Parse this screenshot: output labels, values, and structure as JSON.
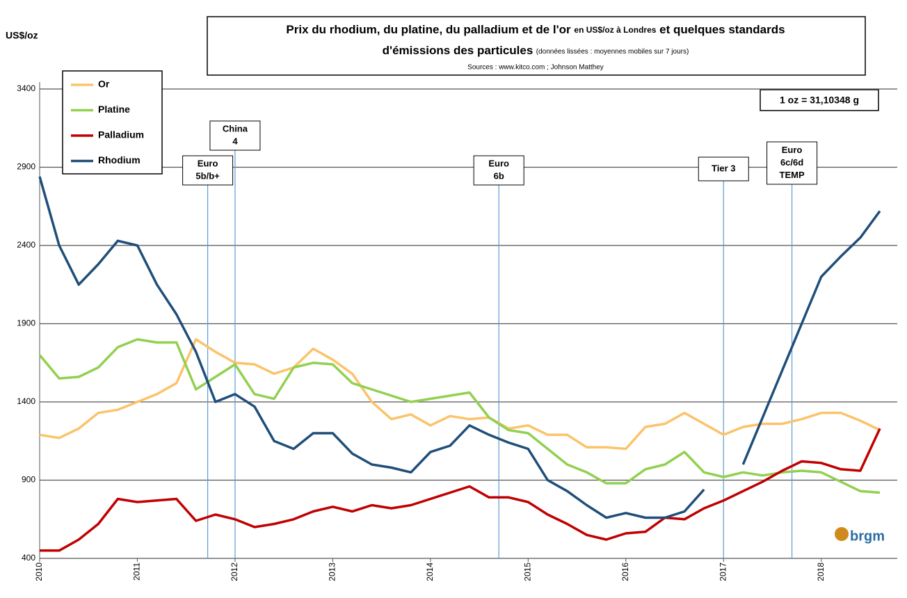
{
  "chart_data": {
    "type": "line",
    "title_parts": [
      "Prix du rhodium, du platine, du palladium et de l'or",
      "en US$/oz à Londres",
      "et quelques standards",
      "d'émissions des particules"
    ],
    "subtitle": "(données lissées : moyennes mobiles sur 7 jours)",
    "source": "Sources : www.kitco.com ; Johnson Matthey",
    "y_label": "US$/oz",
    "note": "1 oz = 31,10348 g",
    "logo_text": "brgm",
    "xlim": [
      2010,
      2018.6
    ],
    "xticks": [
      2010,
      2011,
      2012,
      2013,
      2014,
      2015,
      2016,
      2017,
      2018
    ],
    "ylim": [
      400,
      3400
    ],
    "yticks": [
      400,
      900,
      1400,
      1900,
      2400,
      2900,
      3400
    ],
    "grid": true,
    "legend_position": "upper-left",
    "x": [
      2010.0,
      2010.2,
      2010.4,
      2010.6,
      2010.8,
      2011.0,
      2011.2,
      2011.4,
      2011.6,
      2011.8,
      2012.0,
      2012.2,
      2012.4,
      2012.6,
      2012.8,
      2013.0,
      2013.2,
      2013.4,
      2013.6,
      2013.8,
      2014.0,
      2014.2,
      2014.4,
      2014.6,
      2014.8,
      2015.0,
      2015.2,
      2015.4,
      2015.6,
      2015.8,
      2016.0,
      2016.2,
      2016.4,
      2016.6,
      2016.8,
      2017.0,
      2017.2,
      2017.4,
      2017.6,
      2017.8,
      2018.0,
      2018.2,
      2018.4,
      2018.6
    ],
    "series": [
      {
        "name": "Or",
        "color": "#fbc36a",
        "values": [
          1190,
          1170,
          1230,
          1330,
          1350,
          1400,
          1450,
          1520,
          1800,
          1720,
          1650,
          1640,
          1580,
          1620,
          1740,
          1670,
          1580,
          1400,
          1290,
          1320,
          1250,
          1310,
          1290,
          1300,
          1230,
          1250,
          1190,
          1190,
          1110,
          1110,
          1100,
          1240,
          1260,
          1330,
          1260,
          1190,
          1240,
          1260,
          1260,
          1290,
          1330,
          1330,
          1280,
          1220
        ]
      },
      {
        "name": "Platine",
        "color": "#92d050",
        "values": [
          1700,
          1550,
          1560,
          1620,
          1750,
          1800,
          1780,
          1780,
          1480,
          1560,
          1640,
          1450,
          1420,
          1620,
          1650,
          1640,
          1520,
          1480,
          1440,
          1400,
          1420,
          1440,
          1460,
          1300,
          1220,
          1200,
          1100,
          1000,
          950,
          880,
          880,
          970,
          1000,
          1080,
          950,
          920,
          950,
          930,
          950,
          960,
          950,
          890,
          830,
          820
        ]
      },
      {
        "name": "Palladium",
        "color": "#c00000",
        "values": [
          450,
          450,
          520,
          620,
          780,
          760,
          770,
          780,
          640,
          680,
          650,
          600,
          620,
          650,
          700,
          730,
          700,
          740,
          720,
          740,
          780,
          820,
          860,
          790,
          790,
          760,
          680,
          620,
          550,
          520,
          560,
          570,
          660,
          650,
          720,
          770,
          830,
          890,
          960,
          1020,
          1010,
          970,
          960,
          1230
        ]
      },
      {
        "name": "Rhodium",
        "color": "#1f4e79",
        "values": [
          2840,
          2400,
          2150,
          2280,
          2430,
          2400,
          2150,
          1960,
          1720,
          1400,
          1450,
          1370,
          1150,
          1100,
          1200,
          1200,
          1070,
          1000,
          980,
          950,
          1080,
          1120,
          1250,
          1190,
          1140,
          1100,
          900,
          830,
          740,
          660,
          690,
          660,
          660,
          700,
          840,
          null,
          1000,
          1300,
          1600,
          1900,
          2200,
          2330,
          2450,
          2620
        ]
      }
    ],
    "annotations": [
      {
        "lines": [
          "Euro",
          "5b/b+"
        ],
        "x": 2011.72
      },
      {
        "lines": [
          "China",
          "4"
        ],
        "x": 2012.0
      },
      {
        "lines": [
          "Euro",
          "6b"
        ],
        "x": 2014.7
      },
      {
        "lines": [
          "Tier 3"
        ],
        "x": 2017.0
      },
      {
        "lines": [
          "Euro",
          "6c/6d",
          "TEMP"
        ],
        "x": 2017.7
      }
    ]
  }
}
